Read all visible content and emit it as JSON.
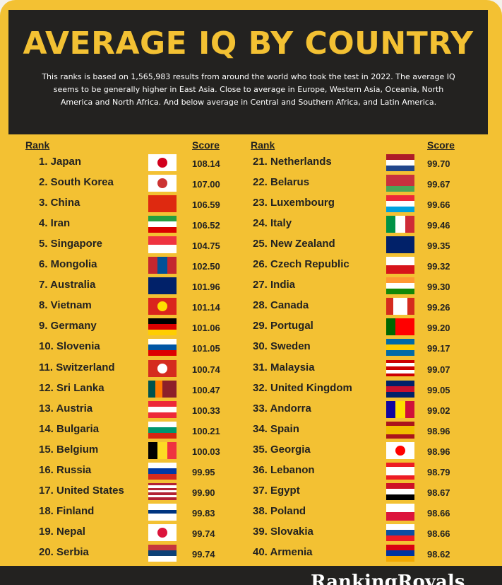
{
  "header": {
    "title": "AVERAGE IQ BY COUNTRY",
    "description": "This ranks is based on 1,565,983 results from around the world who took the test in 2022. The average IQ seems to be generally higher in East Asia. Close to average in Europe, Western Asia, Oceania, North America and North Africa. And below average in Central and Southern Africa, and Latin America."
  },
  "table": {
    "left_header": [
      "Rank",
      "Score"
    ],
    "right_header": [
      "Rank",
      "Score"
    ],
    "rows": [
      [
        "1. Japan",
        "108.14"
      ],
      [
        "2. South Korea",
        "107.00"
      ],
      [
        "3. China",
        "106.59"
      ],
      [
        "4. Iran",
        "106.52"
      ],
      [
        "5. Singapore",
        "104.75"
      ],
      [
        "6. Mongolia",
        "102.50"
      ],
      [
        "7. Australia",
        "101.96"
      ],
      [
        "8. Vietnam",
        "101.14"
      ],
      [
        "9. Germany",
        "101.06"
      ],
      [
        "10. Slovenia",
        "101.05"
      ],
      [
        "11. Switzerland",
        "100.74"
      ],
      [
        "12. Sri Lanka",
        "100.47"
      ],
      [
        "13. Austria",
        "100.33"
      ],
      [
        "14. Bulgaria",
        "100.21"
      ],
      [
        "15. Belgium",
        "100.03"
      ],
      [
        "16. Russia",
        "99.95"
      ],
      [
        "17. United States",
        "99.90"
      ],
      [
        "18. Finland",
        "99.83"
      ],
      [
        "19. Nepal",
        "99.74"
      ],
      [
        "20. Serbia",
        "99.74"
      ],
      [
        "21. Netherlands",
        "99.70"
      ],
      [
        "22. Belarus",
        "99.67"
      ],
      [
        "23. Luxembourg",
        "99.66"
      ],
      [
        "24. Italy",
        "99.46"
      ],
      [
        "25. New Zealand",
        "99.35"
      ],
      [
        "26. Czech Republic",
        "99.32"
      ],
      [
        "27. India",
        "99.30"
      ],
      [
        "28. Canada",
        "99.26"
      ],
      [
        "29. Portugal",
        "99.20"
      ],
      [
        "30. Sweden",
        "99.17"
      ],
      [
        "31. Malaysia",
        "99.07"
      ],
      [
        "32. United Kingdom",
        "99.05"
      ],
      [
        "33. Andorra",
        "99.02"
      ],
      [
        "34. Spain",
        "98.96"
      ],
      [
        "35. Georgia",
        "98.96"
      ],
      [
        "36. Lebanon",
        "98.79"
      ],
      [
        "37. Egypt",
        "98.67"
      ],
      [
        "38. Poland",
        "98.66"
      ],
      [
        "39. Slovakia",
        "98.66"
      ],
      [
        "40. Armenia",
        "98.62"
      ]
    ]
  },
  "footer": {
    "brand": "RankingRoyals"
  }
}
